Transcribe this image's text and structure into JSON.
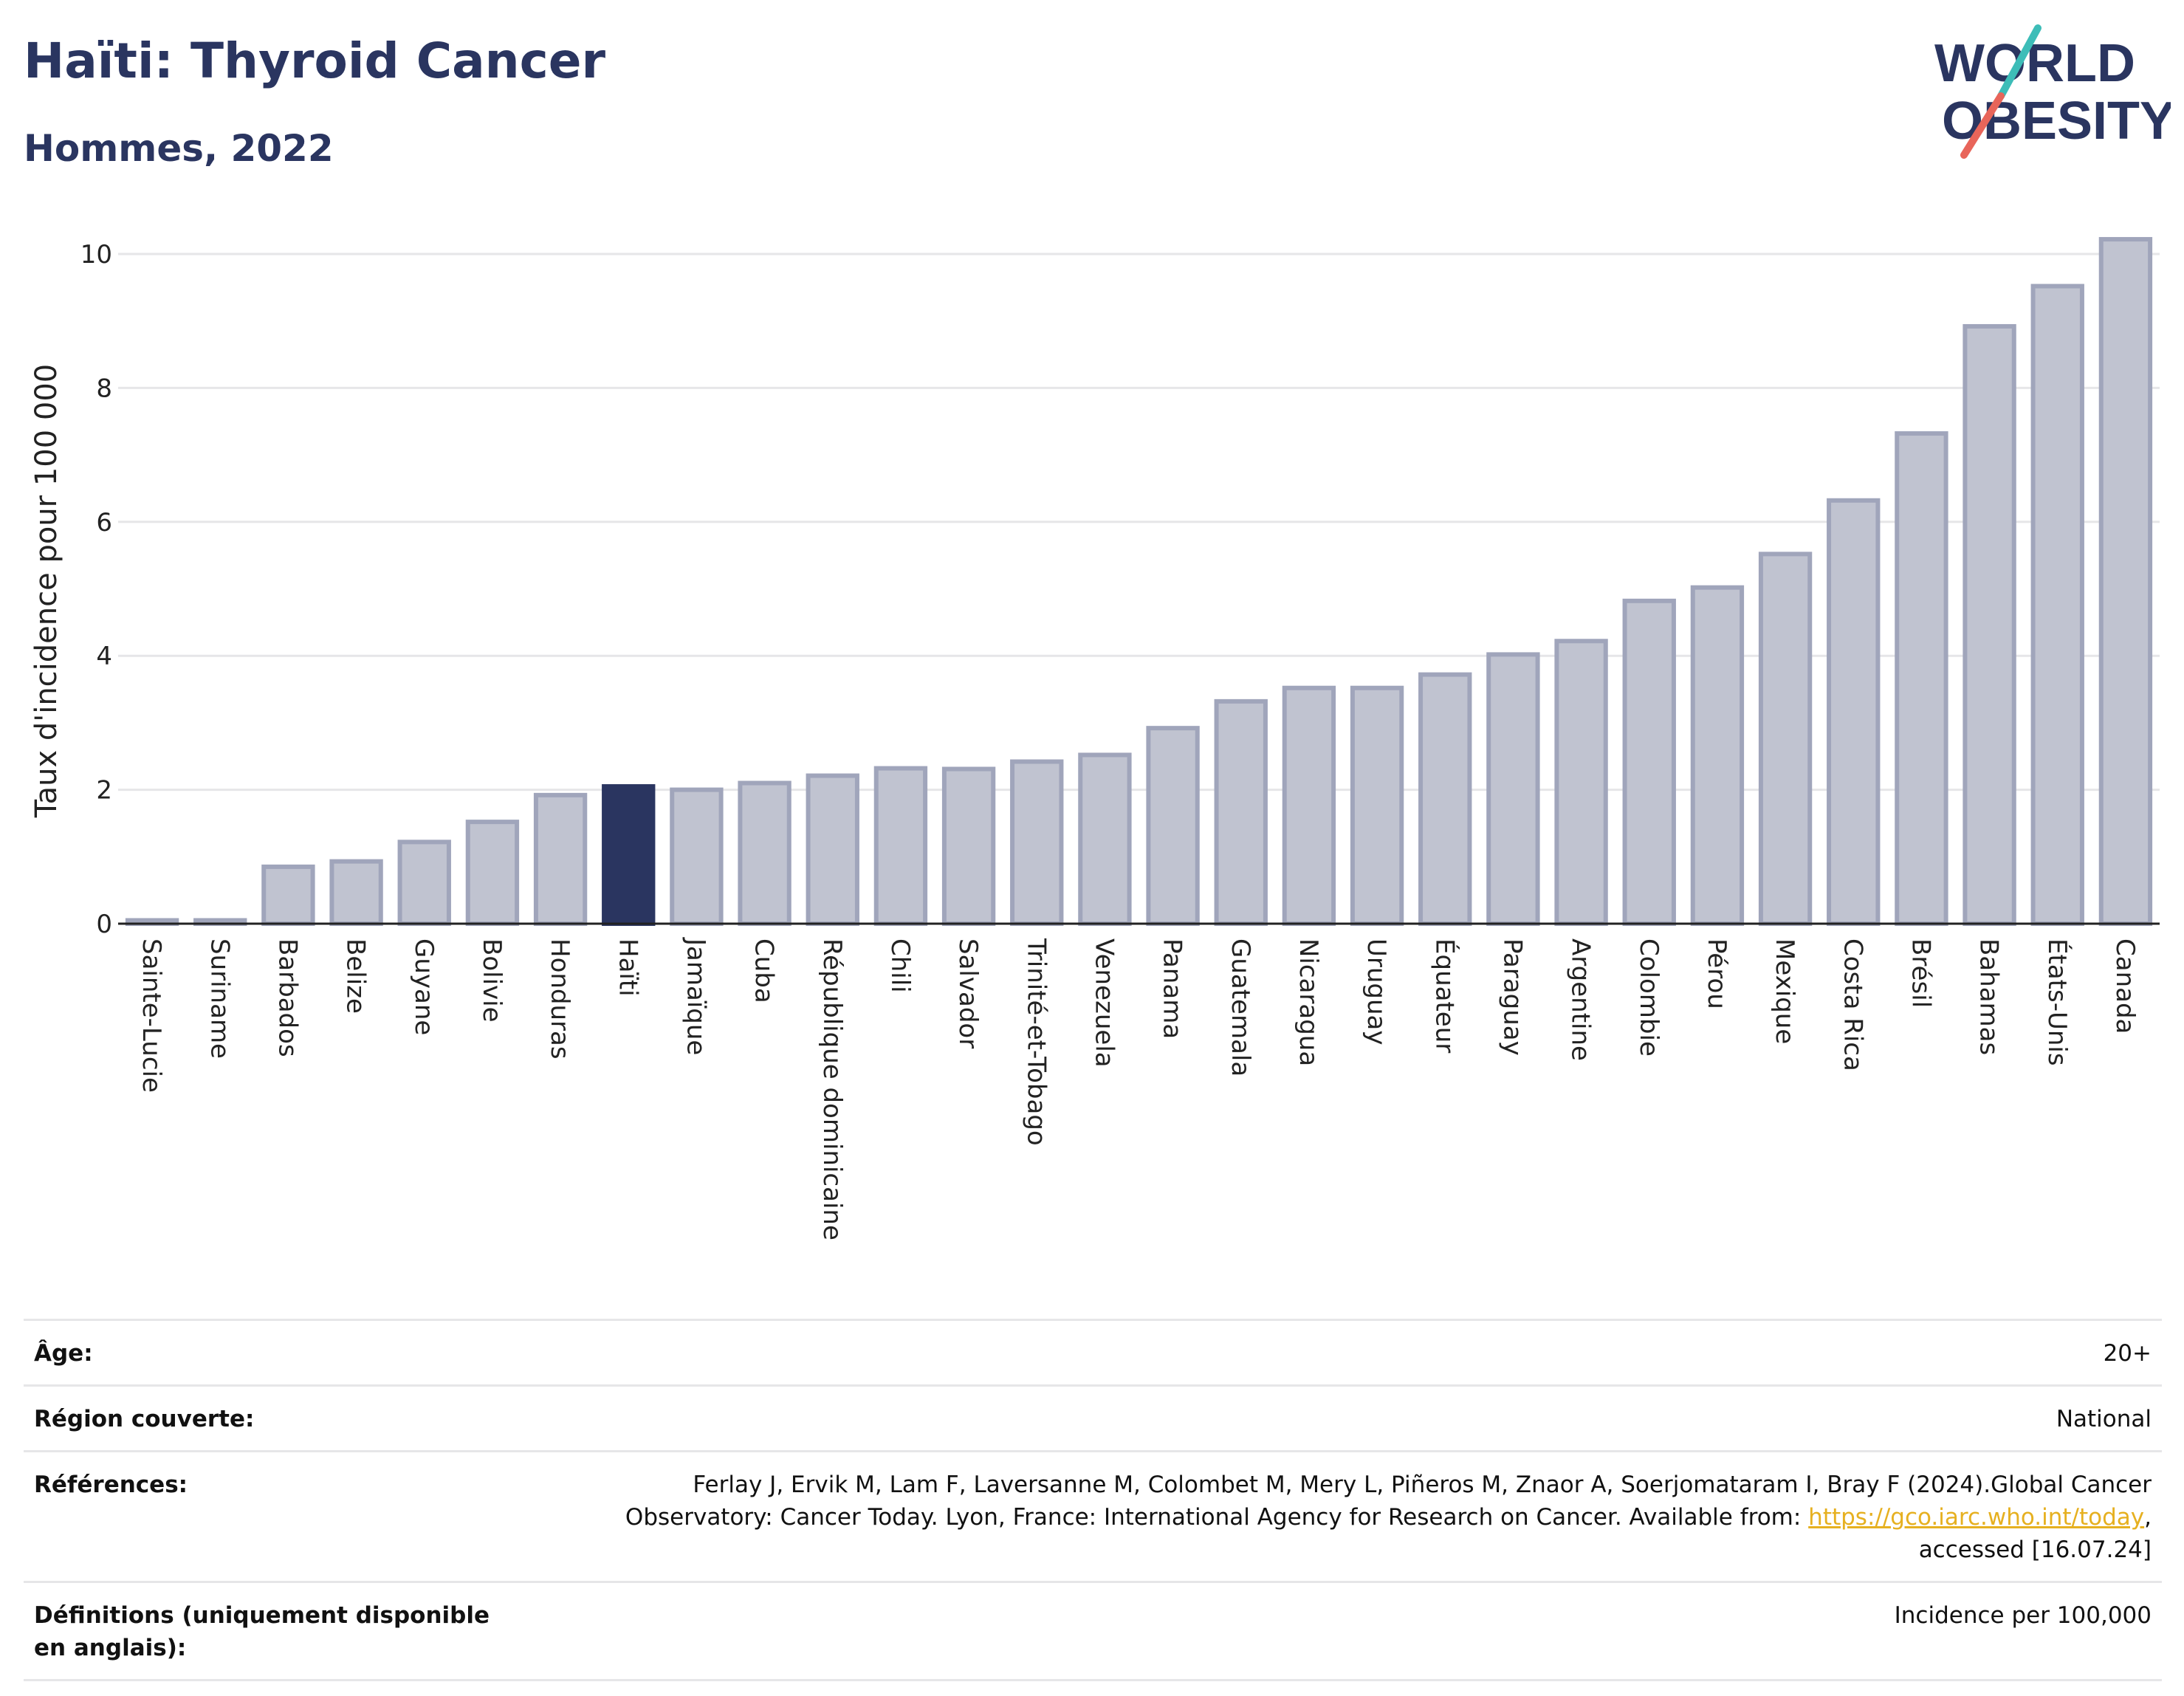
{
  "header": {
    "title": "Haïti: Thyroid Cancer",
    "subtitle": "Hommes, 2022"
  },
  "logo": {
    "line1": "WORLD",
    "line2": "OBESITY",
    "colors": {
      "text": "#2a3560",
      "slash_teal": "#3dbdb8",
      "slash_coral": "#e8655a"
    }
  },
  "colors": {
    "highlight": "#2a3560",
    "bar_fill": "#c0c3d0",
    "bar_stroke": "#a0a5bb",
    "grid": "#e6e6e8"
  },
  "chart_data": {
    "type": "bar",
    "ylabel": "Taux d'incidence pour 100 000",
    "xlabel": "",
    "ylim": [
      0,
      10.5
    ],
    "yticks": [
      0,
      2,
      4,
      6,
      8,
      10
    ],
    "grid": true,
    "highlight": "Haïti",
    "categories": [
      "Sainte-Lucie",
      "Suriname",
      "Barbados",
      "Belize",
      "Guyane",
      "Bolivie",
      "Honduras",
      "Haïti",
      "Jamaïque",
      "Cuba",
      "République dominicaine",
      "Chili",
      "Salvador",
      "Trinité-et-Tobago",
      "Venezuela",
      "Panama",
      "Guatemala",
      "Nicaragua",
      "Uruguay",
      "Équateur",
      "Paraguay",
      "Argentine",
      "Colombie",
      "Pérou",
      "Mexique",
      "Costa Rica",
      "Brésil",
      "Bahamas",
      "États-Unis",
      "Canada"
    ],
    "values": [
      0.05,
      0.05,
      0.85,
      0.93,
      1.22,
      1.52,
      1.92,
      2.05,
      2.0,
      2.1,
      2.21,
      2.32,
      2.31,
      2.42,
      2.52,
      2.92,
      3.32,
      3.52,
      3.52,
      3.72,
      4.02,
      4.22,
      4.82,
      5.02,
      5.52,
      6.32,
      7.32,
      8.92,
      9.52,
      10.22
    ]
  },
  "info": {
    "age_label": "Âge:",
    "age_value": "20+",
    "region_label": "Région couverte:",
    "region_value": "National",
    "references_label": "Références:",
    "references_text_1": "Ferlay J, Ervik M, Lam F, Laversanne M, Colombet M, Mery L, Piñeros M, Znaor A, Soerjomataram I, Bray F (2024).Global Cancer",
    "references_text_2": "Observatory: Cancer Today. Lyon, France: International Agency for Research on Cancer. Available from: ",
    "references_link": "https://gco.iarc.who.int/today",
    "references_text_3": ",",
    "references_text_4": "accessed [16.07.24]",
    "definitions_label": "Définitions (uniquement disponible en anglais):",
    "definitions_value": "Incidence per 100,000"
  }
}
